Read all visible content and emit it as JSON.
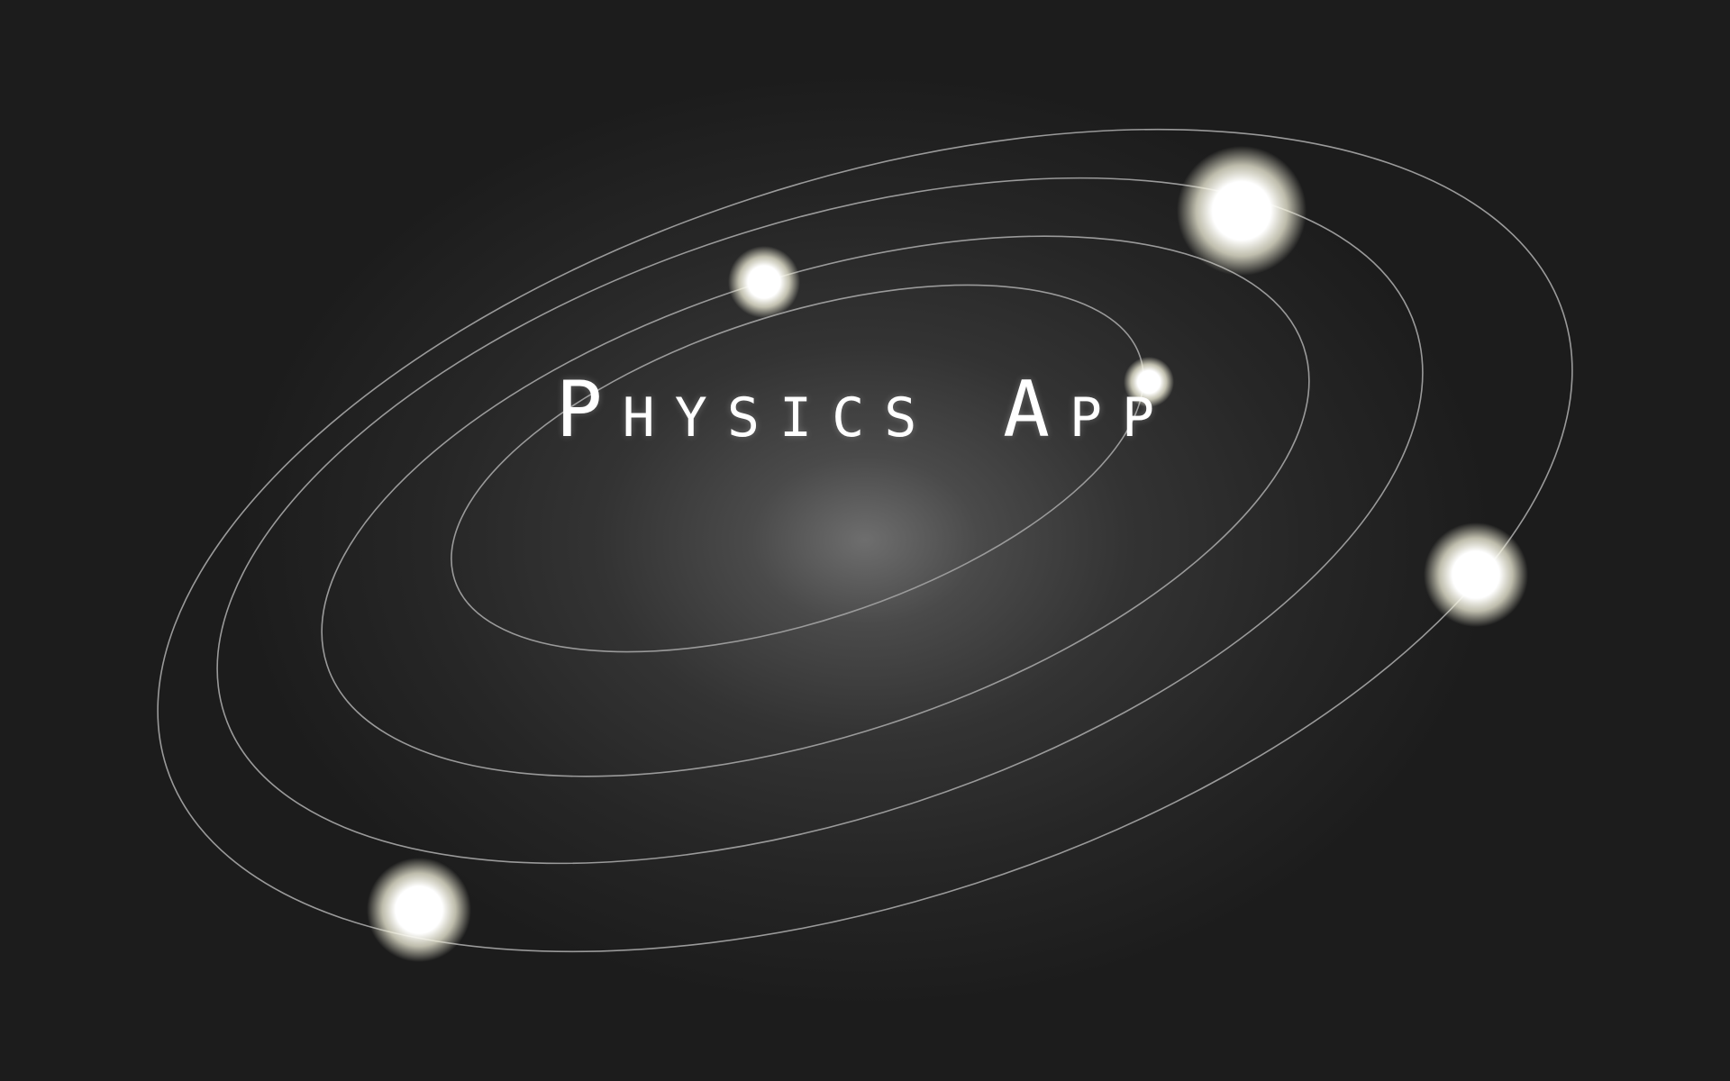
{
  "app": {
    "title": "Physics App"
  },
  "scene": {
    "orbit_count": 4,
    "body_count": 5,
    "colors": {
      "background": "#1b1b1b",
      "orbit_line": "#9a9a9a",
      "body_core": "#ffffff",
      "body_glow": "#f4f2dc"
    }
  }
}
